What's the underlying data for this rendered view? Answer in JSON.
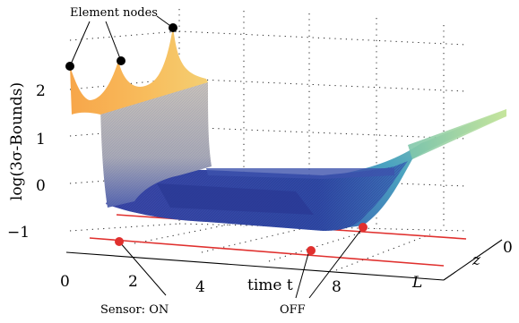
{
  "chart_data": {
    "type": "surface",
    "zlabel": "log(3σ-Bounds)",
    "xlabel": "time t",
    "ylabel": "z",
    "x_ticks": [
      "0",
      "2",
      "4",
      "8"
    ],
    "y_ticks": [
      "0",
      "L"
    ],
    "z_ticks": [
      "−1",
      "0",
      "1",
      "2"
    ],
    "zlim": [
      -1.3,
      2.8
    ],
    "grid": true,
    "annotations": {
      "element_nodes": "Element nodes",
      "sensor_on": "Sensor: ON",
      "sensor_off": "OFF"
    },
    "sensor_events": [
      {
        "label": "ON",
        "t": 1.6
      },
      {
        "label": "OFF",
        "t": 7.2
      }
    ],
    "surface_profile": [
      {
        "t": 0.0,
        "log_sigma_bound": 2.3
      },
      {
        "t": 1.1,
        "log_sigma_bound": 2.3
      },
      {
        "t": 1.6,
        "log_sigma_bound": -0.5
      },
      {
        "t": 3.0,
        "log_sigma_bound": -0.8
      },
      {
        "t": 4.5,
        "log_sigma_bound": -0.9
      },
      {
        "t": 7.2,
        "log_sigma_bound": -1.0
      },
      {
        "t": 8.5,
        "log_sigma_bound": -0.4
      },
      {
        "t": 10.0,
        "log_sigma_bound": 1.2
      }
    ],
    "element_node_peaks": [
      2.5,
      2.6,
      3.2
    ],
    "colors": {
      "high": "#f5a94b",
      "mid_grey": "#b9b5b2",
      "low": "#2b3da0",
      "right_end": "#a8d9a2",
      "sensor_line": "#e0302e",
      "marker_node": "#000000"
    }
  }
}
